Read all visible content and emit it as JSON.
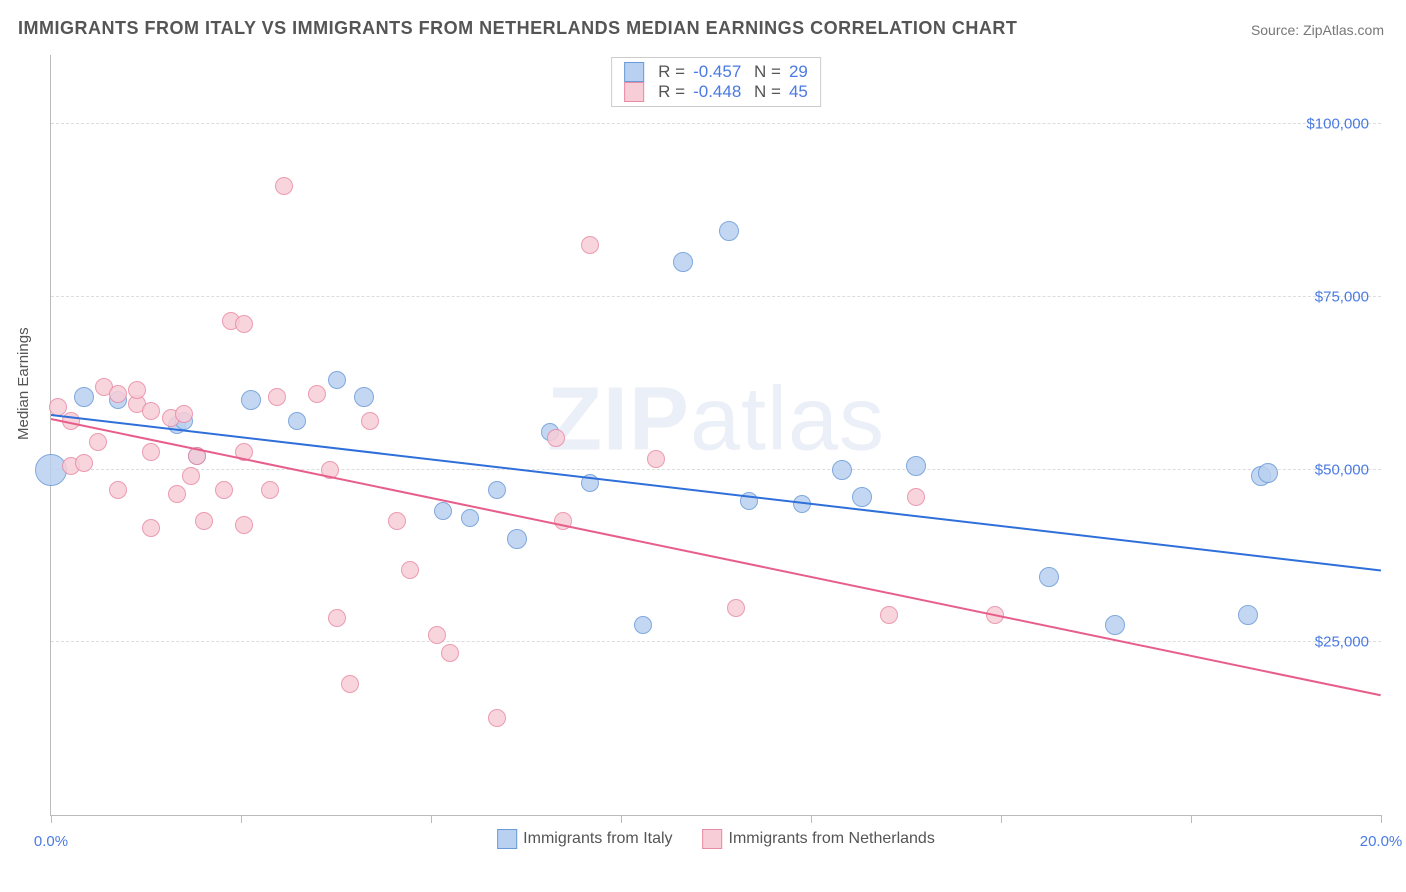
{
  "title": "IMMIGRANTS FROM ITALY VS IMMIGRANTS FROM NETHERLANDS MEDIAN EARNINGS CORRELATION CHART",
  "source": "Source: ZipAtlas.com",
  "watermark": "ZIPatlas",
  "ylabel": "Median Earnings",
  "chart": {
    "type": "scatter",
    "xlim": [
      0,
      20
    ],
    "ylim": [
      0,
      110000
    ],
    "background_color": "#ffffff",
    "grid_color": "#dddddd",
    "grid_style": "dashed",
    "axis_color": "#bbbbbb",
    "tick_color": "#4a7ae2",
    "yticks": [
      {
        "v": 25000,
        "label": "$25,000"
      },
      {
        "v": 50000,
        "label": "$50,000"
      },
      {
        "v": 75000,
        "label": "$75,000"
      },
      {
        "v": 100000,
        "label": "$100,000"
      }
    ],
    "xticks": [
      0,
      2.86,
      5.71,
      8.57,
      11.43,
      14.29,
      17.14,
      20
    ],
    "xlabels": [
      {
        "v": 0,
        "label": "0.0%"
      },
      {
        "v": 20,
        "label": "20.0%"
      }
    ],
    "series": [
      {
        "name": "Immigrants from Italy",
        "color_fill": "#b9d1f0",
        "color_stroke": "#6a9ad8",
        "trend_color": "#2e6fd9",
        "r": "-0.457",
        "n": "29",
        "trend": {
          "x1": 0,
          "y1": 58000,
          "x2": 20,
          "y2": 35500
        },
        "points": [
          {
            "x": 0.0,
            "y": 50000,
            "size": 30
          },
          {
            "x": 0.5,
            "y": 60500,
            "size": 18
          },
          {
            "x": 1.0,
            "y": 60000,
            "size": 16
          },
          {
            "x": 1.9,
            "y": 56500,
            "size": 16
          },
          {
            "x": 2.0,
            "y": 57000,
            "size": 16
          },
          {
            "x": 2.2,
            "y": 52000,
            "size": 16
          },
          {
            "x": 3.0,
            "y": 60000,
            "size": 18
          },
          {
            "x": 3.7,
            "y": 57000,
            "size": 16
          },
          {
            "x": 4.3,
            "y": 63000,
            "size": 16
          },
          {
            "x": 4.7,
            "y": 60500,
            "size": 18
          },
          {
            "x": 5.9,
            "y": 44000,
            "size": 16
          },
          {
            "x": 6.3,
            "y": 43000,
            "size": 16
          },
          {
            "x": 6.7,
            "y": 47000,
            "size": 16
          },
          {
            "x": 7.0,
            "y": 40000,
            "size": 18
          },
          {
            "x": 7.5,
            "y": 55500,
            "size": 16
          },
          {
            "x": 8.1,
            "y": 48000,
            "size": 16
          },
          {
            "x": 8.9,
            "y": 27500,
            "size": 16
          },
          {
            "x": 9.5,
            "y": 80000,
            "size": 18
          },
          {
            "x": 10.2,
            "y": 84500,
            "size": 18
          },
          {
            "x": 10.5,
            "y": 45500,
            "size": 16
          },
          {
            "x": 11.3,
            "y": 45000,
            "size": 16
          },
          {
            "x": 11.9,
            "y": 50000,
            "size": 18
          },
          {
            "x": 12.2,
            "y": 46000,
            "size": 18
          },
          {
            "x": 13.0,
            "y": 50500,
            "size": 18
          },
          {
            "x": 15.0,
            "y": 34500,
            "size": 18
          },
          {
            "x": 16.0,
            "y": 27500,
            "size": 18
          },
          {
            "x": 18.0,
            "y": 29000,
            "size": 18
          },
          {
            "x": 18.2,
            "y": 49000,
            "size": 18
          },
          {
            "x": 18.3,
            "y": 49500,
            "size": 18
          }
        ]
      },
      {
        "name": "Immigrants from Netherlands",
        "color_fill": "#f7cdd8",
        "color_stroke": "#e88aa4",
        "trend_color": "#e75e8a",
        "r": "-0.448",
        "n": "45",
        "trend": {
          "x1": 0,
          "y1": 57500,
          "x2": 20,
          "y2": 17500
        },
        "points": [
          {
            "x": 0.1,
            "y": 59000,
            "size": 16
          },
          {
            "x": 0.3,
            "y": 50500,
            "size": 16
          },
          {
            "x": 0.3,
            "y": 57000,
            "size": 16
          },
          {
            "x": 0.5,
            "y": 51000,
            "size": 16
          },
          {
            "x": 0.7,
            "y": 54000,
            "size": 16
          },
          {
            "x": 0.8,
            "y": 62000,
            "size": 16
          },
          {
            "x": 1.0,
            "y": 61000,
            "size": 16
          },
          {
            "x": 1.0,
            "y": 47000,
            "size": 16
          },
          {
            "x": 1.3,
            "y": 59500,
            "size": 16
          },
          {
            "x": 1.3,
            "y": 61500,
            "size": 16
          },
          {
            "x": 1.5,
            "y": 58500,
            "size": 16
          },
          {
            "x": 1.5,
            "y": 52500,
            "size": 16
          },
          {
            "x": 1.5,
            "y": 41500,
            "size": 16
          },
          {
            "x": 1.8,
            "y": 57500,
            "size": 16
          },
          {
            "x": 1.9,
            "y": 46500,
            "size": 16
          },
          {
            "x": 2.0,
            "y": 58000,
            "size": 16
          },
          {
            "x": 2.1,
            "y": 49000,
            "size": 16
          },
          {
            "x": 2.2,
            "y": 52000,
            "size": 16
          },
          {
            "x": 2.3,
            "y": 42500,
            "size": 16
          },
          {
            "x": 2.6,
            "y": 47000,
            "size": 16
          },
          {
            "x": 2.7,
            "y": 71500,
            "size": 16
          },
          {
            "x": 2.9,
            "y": 71000,
            "size": 16
          },
          {
            "x": 2.9,
            "y": 52500,
            "size": 16
          },
          {
            "x": 2.9,
            "y": 42000,
            "size": 16
          },
          {
            "x": 3.3,
            "y": 47000,
            "size": 16
          },
          {
            "x": 3.4,
            "y": 60500,
            "size": 16
          },
          {
            "x": 3.5,
            "y": 91000,
            "size": 16
          },
          {
            "x": 4.0,
            "y": 61000,
            "size": 16
          },
          {
            "x": 4.2,
            "y": 50000,
            "size": 16
          },
          {
            "x": 4.3,
            "y": 28500,
            "size": 16
          },
          {
            "x": 4.5,
            "y": 19000,
            "size": 16
          },
          {
            "x": 4.8,
            "y": 57000,
            "size": 16
          },
          {
            "x": 5.2,
            "y": 42500,
            "size": 16
          },
          {
            "x": 5.4,
            "y": 35500,
            "size": 16
          },
          {
            "x": 5.8,
            "y": 26000,
            "size": 16
          },
          {
            "x": 6.0,
            "y": 23500,
            "size": 16
          },
          {
            "x": 6.7,
            "y": 14000,
            "size": 16
          },
          {
            "x": 7.6,
            "y": 54500,
            "size": 16
          },
          {
            "x": 7.7,
            "y": 42500,
            "size": 16
          },
          {
            "x": 8.1,
            "y": 82500,
            "size": 16
          },
          {
            "x": 9.1,
            "y": 51500,
            "size": 16
          },
          {
            "x": 10.3,
            "y": 30000,
            "size": 16
          },
          {
            "x": 12.6,
            "y": 29000,
            "size": 16
          },
          {
            "x": 14.2,
            "y": 29000,
            "size": 16
          },
          {
            "x": 13.0,
            "y": 46000,
            "size": 16
          }
        ]
      }
    ]
  }
}
